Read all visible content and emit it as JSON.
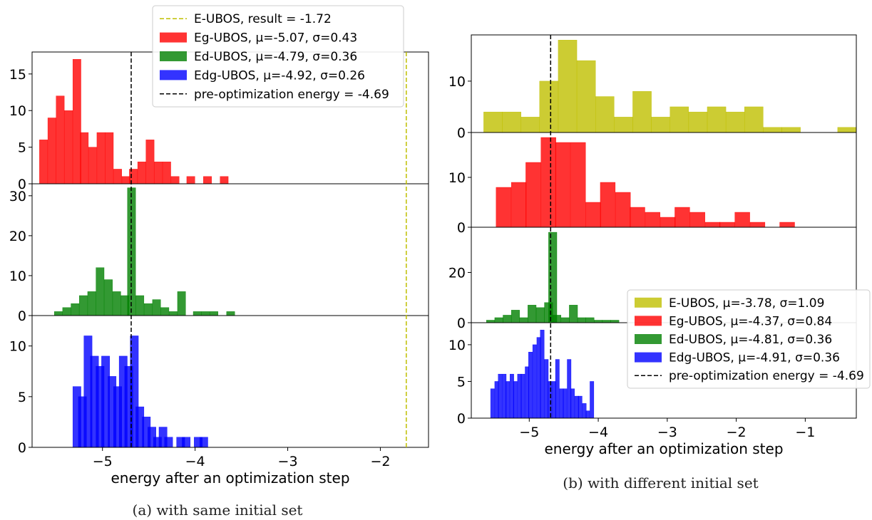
{
  "colors": {
    "E-UBOS": "#bfbf00",
    "Eg-UBOS": "#ff0000",
    "Ed-UBOS": "#008000",
    "Edg-UBOS": "#0000ff",
    "pre-optimization": "#000000"
  },
  "captions": {
    "a": "(a) with same initial set",
    "b": "(b) with different initial set"
  },
  "chart_data": [
    {
      "id": "a",
      "type": "bar",
      "subtype": "stacked-histogram",
      "xlabel": "energy after an optimization step",
      "xlim": [
        -5.76,
        -1.48
      ],
      "xticks": [
        -5,
        -4,
        -3,
        -2
      ],
      "xtick_labels": [
        "−5",
        "−4",
        "−3",
        "−2"
      ],
      "bin_width": 0.0875,
      "vlines": [
        {
          "x": -4.69,
          "style": "dashed",
          "color": "#000000"
        },
        {
          "x": -1.72,
          "style": "dashed",
          "color": "#bfbf00"
        }
      ],
      "legend": {
        "position": "top-center",
        "entries": [
          {
            "kind": "line",
            "color": "#bfbf00",
            "label": "E-UBOS, result = -1.72"
          },
          {
            "kind": "patch",
            "color": "#ff0000",
            "label": "Eg-UBOS, μ=-5.07, σ=0.43"
          },
          {
            "kind": "patch",
            "color": "#008000",
            "label": "Ed-UBOS, μ=-4.79, σ=0.36"
          },
          {
            "kind": "patch",
            "color": "#0000ff",
            "label": "Edg-UBOS, μ=-4.92, σ=0.26"
          },
          {
            "kind": "line",
            "color": "#000000",
            "label": "pre-optimization energy = -4.69"
          }
        ]
      },
      "panels": [
        {
          "series": "Eg-UBOS",
          "color": "#ff0000",
          "ylim": [
            0,
            18
          ],
          "yticks": [
            0,
            5,
            10,
            15
          ],
          "bins": [
            [
              -5.68,
              6
            ],
            [
              -5.59,
              9
            ],
            [
              -5.5,
              12
            ],
            [
              -5.41,
              10
            ],
            [
              -5.32,
              17
            ],
            [
              -5.24,
              7
            ],
            [
              -5.15,
              5
            ],
            [
              -5.06,
              7
            ],
            [
              -4.97,
              7
            ],
            [
              -4.88,
              2
            ],
            [
              -4.79,
              1
            ],
            [
              -4.71,
              2
            ],
            [
              -4.62,
              3
            ],
            [
              -4.53,
              6
            ],
            [
              -4.44,
              3
            ],
            [
              -4.35,
              3
            ],
            [
              -4.26,
              1
            ],
            [
              -4.09,
              1
            ],
            [
              -3.91,
              1
            ],
            [
              -3.73,
              1
            ]
          ]
        },
        {
          "series": "Ed-UBOS",
          "color": "#008000",
          "ylim": [
            0,
            33
          ],
          "yticks": [
            0,
            10,
            20,
            30
          ],
          "bins": [
            [
              -5.52,
              1
            ],
            [
              -5.43,
              2
            ],
            [
              -5.34,
              3
            ],
            [
              -5.25,
              5
            ],
            [
              -5.16,
              6
            ],
            [
              -5.07,
              12
            ],
            [
              -4.98,
              9
            ],
            [
              -4.89,
              6
            ],
            [
              -4.8,
              5
            ],
            [
              -4.73,
              32
            ],
            [
              -4.64,
              5
            ],
            [
              -4.55,
              3
            ],
            [
              -4.46,
              4
            ],
            [
              -4.37,
              2
            ],
            [
              -4.28,
              1
            ],
            [
              -4.19,
              6
            ],
            [
              -4.02,
              1
            ],
            [
              -3.93,
              1
            ],
            [
              -3.84,
              1
            ],
            [
              -3.66,
              1
            ]
          ]
        },
        {
          "series": "Edg-UBOS",
          "color": "#0000ff",
          "ylim": [
            0,
            13
          ],
          "yticks": [
            0,
            5,
            10
          ],
          "bins": [
            [
              -5.32,
              6
            ],
            [
              -5.26,
              5
            ],
            [
              -5.2,
              11
            ],
            [
              -5.13,
              9
            ],
            [
              -5.07,
              8
            ],
            [
              -5.01,
              9
            ],
            [
              -4.94,
              7
            ],
            [
              -4.88,
              6
            ],
            [
              -4.82,
              9
            ],
            [
              -4.76,
              8
            ],
            [
              -4.7,
              11
            ],
            [
              -4.64,
              4
            ],
            [
              -4.57,
              3
            ],
            [
              -4.51,
              2
            ],
            [
              -4.45,
              1
            ],
            [
              -4.39,
              2
            ],
            [
              -4.33,
              1
            ],
            [
              -4.2,
              1
            ],
            [
              -4.14,
              1
            ],
            [
              -4.01,
              1
            ],
            [
              -3.95,
              1
            ]
          ]
        }
      ]
    },
    {
      "id": "b",
      "type": "bar",
      "subtype": "stacked-histogram",
      "xlabel": "energy after an optimization step",
      "xlim": [
        -5.84,
        -0.26
      ],
      "xticks": [
        -5,
        -4,
        -3,
        -2,
        -1
      ],
      "xtick_labels": [
        "−5",
        "−4",
        "−3",
        "−2",
        "−1"
      ],
      "vlines": [
        {
          "x": -4.69,
          "style": "dashed",
          "color": "#000000"
        }
      ],
      "legend": {
        "position": "middle-right",
        "entries": [
          {
            "kind": "patch",
            "color": "#bfbf00",
            "label": "E-UBOS, μ=-3.78, σ=1.09"
          },
          {
            "kind": "patch",
            "color": "#ff0000",
            "label": "Eg-UBOS, μ=-4.37, σ=0.84"
          },
          {
            "kind": "patch",
            "color": "#008000",
            "label": "Ed-UBOS, μ=-4.81, σ=0.36"
          },
          {
            "kind": "patch",
            "color": "#0000ff",
            "label": "Edg-UBOS, μ=-4.91, σ=0.36"
          },
          {
            "kind": "line",
            "color": "#000000",
            "label": "pre-optimization energy = -4.69"
          }
        ]
      },
      "panels": [
        {
          "series": "E-UBOS",
          "color": "#bfbf00",
          "ylim": [
            0,
            19
          ],
          "yticks": [
            0,
            10
          ],
          "bins": [
            [
              -5.66,
              4
            ],
            [
              -5.39,
              4
            ],
            [
              -5.12,
              3
            ],
            [
              -4.85,
              10
            ],
            [
              -4.58,
              18
            ],
            [
              -4.31,
              14
            ],
            [
              -4.04,
              7
            ],
            [
              -3.77,
              3
            ],
            [
              -3.5,
              8
            ],
            [
              -3.23,
              3
            ],
            [
              -2.96,
              5
            ],
            [
              -2.69,
              4
            ],
            [
              -2.42,
              5
            ],
            [
              -2.15,
              4
            ],
            [
              -1.88,
              5
            ],
            [
              -1.61,
              1
            ],
            [
              -1.34,
              1
            ],
            [
              -0.53,
              1
            ]
          ],
          "bin_width": 0.27
        },
        {
          "series": "Eg-UBOS",
          "color": "#ff0000",
          "ylim": [
            0,
            19
          ],
          "yticks": [
            0,
            10
          ],
          "bins": [
            [
              -5.48,
              8
            ],
            [
              -5.26,
              9
            ],
            [
              -5.05,
              13
            ],
            [
              -4.83,
              18
            ],
            [
              -4.62,
              17
            ],
            [
              -4.4,
              17
            ],
            [
              -4.18,
              5
            ],
            [
              -3.97,
              9
            ],
            [
              -3.75,
              7
            ],
            [
              -3.54,
              4
            ],
            [
              -3.32,
              3
            ],
            [
              -3.1,
              2
            ],
            [
              -2.89,
              4
            ],
            [
              -2.67,
              3
            ],
            [
              -2.45,
              1
            ],
            [
              -2.24,
              1
            ],
            [
              -2.02,
              3
            ],
            [
              -1.8,
              1
            ],
            [
              -1.37,
              1
            ]
          ],
          "bin_width": 0.216
        },
        {
          "series": "Ed-UBOS",
          "color": "#008000",
          "ylim": [
            0,
            38
          ],
          "yticks": [
            0,
            20
          ],
          "bins": [
            [
              -5.62,
              1
            ],
            [
              -5.5,
              2
            ],
            [
              -5.38,
              3
            ],
            [
              -5.26,
              5
            ],
            [
              -5.14,
              2
            ],
            [
              -5.02,
              7
            ],
            [
              -4.9,
              6
            ],
            [
              -4.78,
              8
            ],
            [
              -4.66,
              3
            ],
            [
              -4.72,
              36
            ],
            [
              -4.54,
              2
            ],
            [
              -4.42,
              7
            ],
            [
              -4.3,
              2
            ],
            [
              -4.18,
              2
            ],
            [
              -4.06,
              1
            ],
            [
              -3.94,
              1
            ],
            [
              -3.82,
              1
            ]
          ],
          "bin_width": 0.12
        },
        {
          "series": "Edg-UBOS",
          "color": "#0000ff",
          "ylim": [
            0,
            13
          ],
          "yticks": [
            0,
            5,
            10
          ],
          "bins": [
            [
              -5.56,
              4
            ],
            [
              -5.5,
              5
            ],
            [
              -5.45,
              6
            ],
            [
              -5.39,
              6
            ],
            [
              -5.34,
              5
            ],
            [
              -5.28,
              6
            ],
            [
              -5.23,
              5
            ],
            [
              -5.17,
              6
            ],
            [
              -5.12,
              6
            ],
            [
              -5.06,
              7
            ],
            [
              -5.01,
              9
            ],
            [
              -4.95,
              10
            ],
            [
              -4.89,
              11
            ],
            [
              -4.84,
              12
            ],
            [
              -4.78,
              8
            ],
            [
              -4.73,
              5
            ],
            [
              -4.67,
              5
            ],
            [
              -4.62,
              8
            ],
            [
              -4.56,
              4
            ],
            [
              -4.51,
              4
            ],
            [
              -4.45,
              8
            ],
            [
              -4.4,
              4
            ],
            [
              -4.34,
              3
            ],
            [
              -4.29,
              3
            ],
            [
              -4.23,
              2
            ],
            [
              -4.18,
              1
            ],
            [
              -4.12,
              5
            ]
          ],
          "bin_width": 0.056
        }
      ]
    }
  ]
}
